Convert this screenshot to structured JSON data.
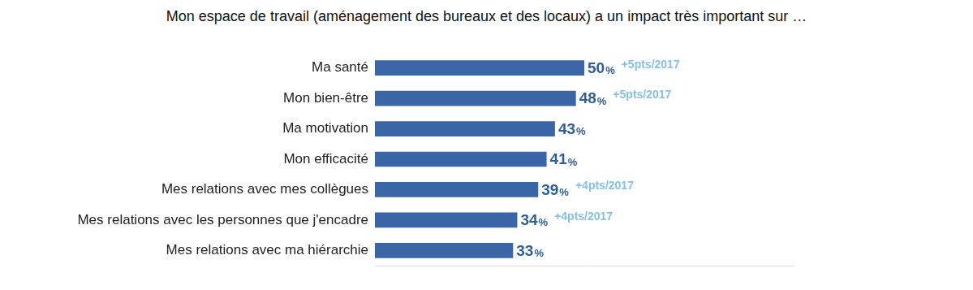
{
  "chart_data": {
    "type": "bar",
    "title": "Mon espace de travail (aménagement des bureaux et des locaux) a un impact très important sur …",
    "categories": [
      "Ma santé",
      "Mon bien-être",
      "Ma motivation",
      "Mon efficacité",
      "Mes relations avec mes collègues",
      "Mes relations avec les personnes que j'encadre",
      "Mes relations avec ma hiérarchie"
    ],
    "values": [
      50,
      48,
      43,
      41,
      39,
      34,
      33
    ],
    "value_labels": [
      "50%",
      "48%",
      "43%",
      "41%",
      "39%",
      "34%",
      "33%"
    ],
    "annotations": [
      "+5pts/2017",
      "+5pts/2017",
      null,
      null,
      "+4pts/2017",
      "+4pts/2017",
      null
    ],
    "color": "#3a66a7",
    "xlim": [
      0,
      100
    ],
    "orientation": "horizontal",
    "data_labels": true,
    "tick_labels": "y",
    "grid": false
  }
}
